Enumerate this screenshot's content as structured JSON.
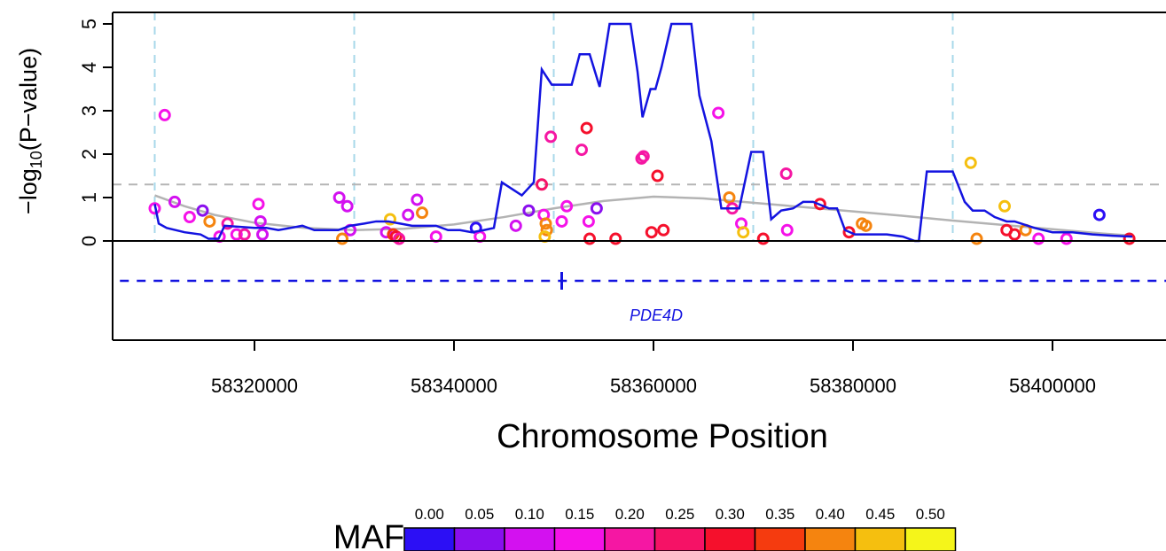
{
  "chart_data": {
    "type": "scatter",
    "title": "",
    "xlabel": "Chromosome Position",
    "ylabel": "−log10(P−value)",
    "ylabel_parts": {
      "prefix": "−log",
      "sub": "10",
      "suffix": "(P−value)"
    },
    "xlim": [
      58305000,
      58410000
    ],
    "ylim": [
      0,
      5.2
    ],
    "x_ticks": [
      58320000,
      58340000,
      58360000,
      58380000,
      58400000
    ],
    "x_tick_labels": [
      "58320000",
      "58340000",
      "58360000",
      "58380000",
      "58400000"
    ],
    "y_ticks": [
      0,
      1,
      2,
      3,
      4,
      5
    ],
    "y_tick_labels": [
      "0",
      "1",
      "2",
      "3",
      "4",
      "5"
    ],
    "threshold_line": {
      "y": 1.3,
      "color": "#b5b5b5",
      "style": "dashed"
    },
    "vertical_guides": {
      "x": [
        58310000,
        58330000,
        58350000,
        58370000,
        58390000
      ],
      "color": "#a8d8ea",
      "style": "dashed"
    },
    "points": [
      {
        "x": 58310000,
        "y": 0.75,
        "maf": 0.15
      },
      {
        "x": 58311000,
        "y": 2.9,
        "maf": 0.17
      },
      {
        "x": 58312000,
        "y": 0.9,
        "maf": 0.12
      },
      {
        "x": 58313500,
        "y": 0.55,
        "maf": 0.15
      },
      {
        "x": 58314800,
        "y": 0.7,
        "maf": 0.05
      },
      {
        "x": 58315500,
        "y": 0.45,
        "maf": 0.38
      },
      {
        "x": 58316500,
        "y": 0.1,
        "maf": 0.15
      },
      {
        "x": 58317300,
        "y": 0.4,
        "maf": 0.18
      },
      {
        "x": 58318200,
        "y": 0.15,
        "maf": 0.15
      },
      {
        "x": 58319000,
        "y": 0.15,
        "maf": 0.2
      },
      {
        "x": 58320400,
        "y": 0.85,
        "maf": 0.15
      },
      {
        "x": 58320600,
        "y": 0.45,
        "maf": 0.1
      },
      {
        "x": 58320800,
        "y": 0.15,
        "maf": 0.08
      },
      {
        "x": 58328500,
        "y": 1.0,
        "maf": 0.12
      },
      {
        "x": 58329300,
        "y": 0.8,
        "maf": 0.08
      },
      {
        "x": 58329600,
        "y": 0.25,
        "maf": 0.1
      },
      {
        "x": 58328800,
        "y": 0.05,
        "maf": 0.42
      },
      {
        "x": 58333600,
        "y": 0.5,
        "maf": 0.45
      },
      {
        "x": 58333200,
        "y": 0.2,
        "maf": 0.12
      },
      {
        "x": 58333900,
        "y": 0.15,
        "maf": 0.35
      },
      {
        "x": 58334200,
        "y": 0.1,
        "maf": 0.28
      },
      {
        "x": 58334500,
        "y": 0.05,
        "maf": 0.22
      },
      {
        "x": 58335400,
        "y": 0.6,
        "maf": 0.08
      },
      {
        "x": 58336300,
        "y": 0.95,
        "maf": 0.08
      },
      {
        "x": 58336800,
        "y": 0.65,
        "maf": 0.38
      },
      {
        "x": 58338200,
        "y": 0.1,
        "maf": 0.15
      },
      {
        "x": 58342200,
        "y": 0.3,
        "maf": 0.02
      },
      {
        "x": 58342600,
        "y": 0.1,
        "maf": 0.15
      },
      {
        "x": 58346200,
        "y": 0.35,
        "maf": 0.08
      },
      {
        "x": 58347500,
        "y": 0.7,
        "maf": 0.05
      },
      {
        "x": 58348800,
        "y": 1.3,
        "maf": 0.25
      },
      {
        "x": 58349000,
        "y": 0.6,
        "maf": 0.15
      },
      {
        "x": 58349200,
        "y": 0.4,
        "maf": 0.38
      },
      {
        "x": 58349300,
        "y": 0.25,
        "maf": 0.42
      },
      {
        "x": 58349100,
        "y": 0.1,
        "maf": 0.45
      },
      {
        "x": 58349700,
        "y": 2.4,
        "maf": 0.2
      },
      {
        "x": 58350800,
        "y": 0.45,
        "maf": 0.15
      },
      {
        "x": 58351300,
        "y": 0.8,
        "maf": 0.15
      },
      {
        "x": 58352800,
        "y": 2.1,
        "maf": 0.18
      },
      {
        "x": 58353300,
        "y": 2.6,
        "maf": 0.3
      },
      {
        "x": 58353500,
        "y": 0.45,
        "maf": 0.15
      },
      {
        "x": 58353600,
        "y": 0.05,
        "maf": 0.32
      },
      {
        "x": 58354300,
        "y": 0.75,
        "maf": 0.05
      },
      {
        "x": 58356200,
        "y": 0.05,
        "maf": 0.32
      },
      {
        "x": 58358800,
        "y": 1.9,
        "maf": 0.22
      },
      {
        "x": 58359000,
        "y": 1.95,
        "maf": 0.2
      },
      {
        "x": 58359800,
        "y": 0.2,
        "maf": 0.32
      },
      {
        "x": 58360400,
        "y": 1.5,
        "maf": 0.28
      },
      {
        "x": 58361000,
        "y": 0.25,
        "maf": 0.32
      },
      {
        "x": 58366500,
        "y": 2.95,
        "maf": 0.17
      },
      {
        "x": 58367600,
        "y": 1.0,
        "maf": 0.38
      },
      {
        "x": 58367900,
        "y": 0.75,
        "maf": 0.22
      },
      {
        "x": 58368800,
        "y": 0.4,
        "maf": 0.15
      },
      {
        "x": 58369000,
        "y": 0.2,
        "maf": 0.45
      },
      {
        "x": 58371000,
        "y": 0.05,
        "maf": 0.32
      },
      {
        "x": 58373300,
        "y": 1.55,
        "maf": 0.18
      },
      {
        "x": 58373400,
        "y": 0.25,
        "maf": 0.15
      },
      {
        "x": 58376700,
        "y": 0.85,
        "maf": 0.28
      },
      {
        "x": 58379600,
        "y": 0.2,
        "maf": 0.32
      },
      {
        "x": 58380900,
        "y": 0.4,
        "maf": 0.38
      },
      {
        "x": 58381300,
        "y": 0.35,
        "maf": 0.42
      },
      {
        "x": 58391800,
        "y": 1.8,
        "maf": 0.45
      },
      {
        "x": 58392400,
        "y": 0.05,
        "maf": 0.38
      },
      {
        "x": 58395200,
        "y": 0.8,
        "maf": 0.45
      },
      {
        "x": 58395400,
        "y": 0.25,
        "maf": 0.32
      },
      {
        "x": 58396200,
        "y": 0.15,
        "maf": 0.3
      },
      {
        "x": 58397300,
        "y": 0.25,
        "maf": 0.42
      },
      {
        "x": 58398600,
        "y": 0.05,
        "maf": 0.15
      },
      {
        "x": 58401400,
        "y": 0.05,
        "maf": 0.15
      },
      {
        "x": 58404700,
        "y": 0.6,
        "maf": 0.02
      },
      {
        "x": 58407700,
        "y": 0.05,
        "maf": 0.3
      }
    ],
    "sliding_line": {
      "color": "#1313e0",
      "x": [
        58310000,
        58310400,
        58311200,
        58313000,
        58314600,
        58315400,
        58316000,
        58316400,
        58317000,
        58320000,
        58321200,
        58322400,
        58323600,
        58324800,
        58326000,
        58327200,
        58328400,
        58329600,
        58331000,
        58332200,
        58333400,
        58334600,
        58335800,
        58337000,
        58338200,
        58339400,
        58340600,
        58341800,
        58343000,
        58344000,
        58344800,
        58345800,
        58346800,
        58347400,
        58348000,
        58348800,
        58349800,
        58350800,
        58351800,
        58352600,
        58353600,
        58354600,
        58355600,
        58356400,
        58357000,
        58357700,
        58358400,
        58358900,
        58359700,
        58360200,
        58360800,
        58361800,
        58362600,
        58363800,
        58364600,
        58365800,
        58366800,
        58367600,
        58368600,
        58369800,
        58370400,
        58371000,
        58371800,
        58372800,
        58374000,
        58375000,
        58376000,
        58377600,
        58378400,
        58379200,
        58380200,
        58381600,
        58383400,
        58385000,
        58386200,
        58386600,
        58387400,
        58389000,
        58390000,
        58391200,
        58392000,
        58393200,
        58394200,
        58395400,
        58396200,
        58398200,
        58400000,
        58402000,
        58404000,
        58406000,
        58408000
      ],
      "y": [
        0.85,
        0.4,
        0.3,
        0.2,
        0.15,
        0.05,
        0.05,
        0.05,
        0.35,
        0.3,
        0.3,
        0.25,
        0.3,
        0.35,
        0.25,
        0.25,
        0.25,
        0.35,
        0.4,
        0.45,
        0.45,
        0.4,
        0.35,
        0.35,
        0.35,
        0.25,
        0.25,
        0.2,
        0.25,
        0.3,
        1.35,
        1.2,
        1.05,
        1.2,
        1.35,
        3.95,
        3.6,
        3.6,
        3.6,
        4.3,
        4.3,
        3.55,
        5.0,
        5.0,
        5.0,
        5.0,
        3.9,
        2.85,
        3.5,
        3.5,
        4.0,
        5.0,
        5.0,
        5.0,
        3.35,
        2.3,
        0.75,
        0.75,
        0.75,
        2.05,
        2.05,
        2.05,
        0.5,
        0.7,
        0.75,
        0.9,
        0.9,
        0.75,
        0.75,
        0.25,
        0.15,
        0.15,
        0.15,
        0.1,
        0.0,
        0.0,
        1.6,
        1.6,
        1.6,
        0.9,
        0.7,
        0.7,
        0.55,
        0.45,
        0.45,
        0.3,
        0.2,
        0.2,
        0.15,
        0.12,
        0.1
      ]
    },
    "smooth_line": {
      "color": "#b3b3b3",
      "x": [
        58310000,
        58313000,
        58316000,
        58320000,
        58325000,
        58330000,
        58335000,
        58340000,
        58345000,
        58350000,
        58355000,
        58360000,
        58365000,
        58370000,
        58375000,
        58380000,
        58385000,
        58390000,
        58395000,
        58400000,
        58405000,
        58408000
      ],
      "y": [
        1.05,
        0.8,
        0.6,
        0.42,
        0.3,
        0.25,
        0.28,
        0.38,
        0.55,
        0.75,
        0.92,
        1.02,
        0.98,
        0.88,
        0.78,
        0.68,
        0.58,
        0.47,
        0.37,
        0.27,
        0.17,
        0.12
      ]
    },
    "gene": {
      "name": "PDE4D",
      "color": "#1313e0",
      "track_x": [
        58305000,
        58410000
      ],
      "exon_x": 58350800
    },
    "maf_legend": {
      "title": "MAF",
      "ticks": [
        "0.00",
        "0.05",
        "0.10",
        "0.15",
        "0.20",
        "0.25",
        "0.30",
        "0.35",
        "0.40",
        "0.45",
        "0.50"
      ],
      "colors": [
        "#2c0ff5",
        "#8a0fee",
        "#d311f0",
        "#f512e8",
        "#f517a3",
        "#f51266",
        "#f5102c",
        "#f53b0f",
        "#f5840f",
        "#f5bf0f",
        "#f5f51a"
      ]
    }
  }
}
